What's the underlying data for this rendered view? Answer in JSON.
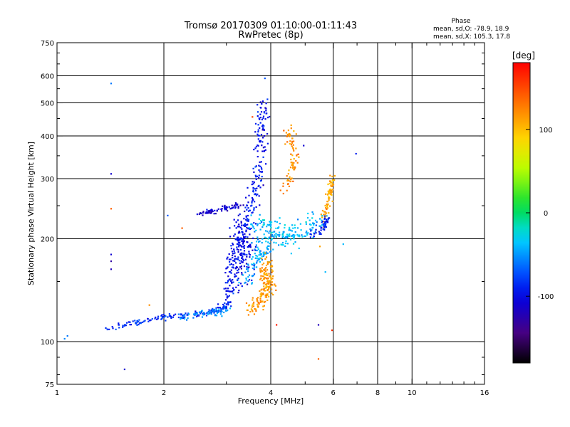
{
  "chart_data": {
    "type": "scatter",
    "title": "Tromsø 20170309 01:10:00-01:11:43",
    "subtitle": "RwPretec (8p)",
    "xlabel": "Frequency [MHz]",
    "ylabel": "Stationary phase Virtual Height [km]",
    "x_scale": "log",
    "y_scale": "log",
    "xlim": [
      1,
      16
    ],
    "ylim": [
      75,
      750
    ],
    "x_ticks": [
      1,
      2,
      4,
      6,
      8,
      10,
      16
    ],
    "y_ticks": [
      75,
      100,
      200,
      300,
      400,
      500,
      600,
      750
    ],
    "grid": true,
    "phase_stats": {
      "title": "Phase",
      "line_o": "mean, sd,O: -78.9, 18.9",
      "line_x": "mean, sd,X: 105.3, 17.8"
    },
    "colorbar": {
      "label": "[deg]",
      "range": [
        -180,
        180
      ],
      "ticks": [
        100,
        0,
        -100
      ],
      "tick_labels": [
        "100",
        "0",
        "-100"
      ]
    },
    "clusters": [
      {
        "name": "low-f blue trace",
        "phase": -85,
        "count": 160,
        "points": [
          [
            1.4,
            110
          ],
          [
            1.55,
            112
          ],
          [
            1.7,
            114
          ],
          [
            1.85,
            116
          ],
          [
            2.0,
            118
          ],
          [
            2.2,
            119
          ],
          [
            2.45,
            120
          ],
          [
            2.7,
            122
          ],
          [
            2.9,
            124
          ],
          [
            3.05,
            130
          ]
        ],
        "spread_f": 0.015,
        "spread_h": 0.012
      },
      {
        "name": "low-f cyan trace",
        "phase": -55,
        "count": 60,
        "points": [
          [
            2.2,
            118
          ],
          [
            2.5,
            120
          ],
          [
            2.8,
            122
          ],
          [
            3.0,
            125
          ]
        ],
        "spread_f": 0.02,
        "spread_h": 0.015
      },
      {
        "name": "O-mode column",
        "phase": -95,
        "count": 260,
        "points": [
          [
            3.0,
            130
          ],
          [
            3.1,
            150
          ],
          [
            3.15,
            170
          ],
          [
            3.25,
            190
          ],
          [
            3.35,
            210
          ],
          [
            3.45,
            235
          ],
          [
            3.55,
            260
          ],
          [
            3.65,
            290
          ],
          [
            3.72,
            330
          ],
          [
            3.76,
            380
          ],
          [
            3.78,
            440
          ],
          [
            3.8,
            500
          ]
        ],
        "spread_f": 0.025,
        "spread_h": 0.03
      },
      {
        "name": "O-mode base blob",
        "phase": -100,
        "count": 160,
        "points": [
          [
            3.1,
            140
          ],
          [
            3.2,
            160
          ],
          [
            3.3,
            180
          ],
          [
            3.4,
            200
          ],
          [
            3.25,
            220
          ],
          [
            3.5,
            170
          ]
        ],
        "spread_f": 0.05,
        "spread_h": 0.06
      },
      {
        "name": "upper cusp blue",
        "phase": -110,
        "count": 70,
        "points": [
          [
            2.5,
            236
          ],
          [
            2.7,
            240
          ],
          [
            2.9,
            244
          ],
          [
            3.1,
            248
          ],
          [
            3.3,
            250
          ]
        ],
        "spread_f": 0.02,
        "spread_h": 0.012
      },
      {
        "name": "cyan diffuse X layer",
        "phase": -40,
        "count": 180,
        "points": [
          [
            3.6,
            230
          ],
          [
            3.9,
            215
          ],
          [
            4.2,
            205
          ],
          [
            4.5,
            200
          ],
          [
            4.8,
            210
          ],
          [
            5.2,
            220
          ],
          [
            5.6,
            225
          ]
        ],
        "spread_f": 0.05,
        "spread_h": 0.05
      },
      {
        "name": "cyan mid column",
        "phase": -45,
        "count": 90,
        "points": [
          [
            3.4,
            150
          ],
          [
            3.6,
            170
          ],
          [
            3.8,
            185
          ],
          [
            3.9,
            195
          ]
        ],
        "spread_f": 0.035,
        "spread_h": 0.04
      },
      {
        "name": "orange X-mode cluster",
        "phase": 115,
        "count": 180,
        "points": [
          [
            3.5,
            125
          ],
          [
            3.7,
            130
          ],
          [
            3.9,
            140
          ],
          [
            4.0,
            150
          ],
          [
            3.8,
            160
          ],
          [
            3.9,
            170
          ],
          [
            4.0,
            145
          ]
        ],
        "spread_f": 0.025,
        "spread_h": 0.04
      },
      {
        "name": "orange upper trace",
        "phase": 120,
        "count": 80,
        "points": [
          [
            4.4,
            280
          ],
          [
            4.6,
            310
          ],
          [
            4.7,
            350
          ],
          [
            4.6,
            380
          ],
          [
            4.5,
            410
          ]
        ],
        "spread_f": 0.02,
        "spread_h": 0.035
      },
      {
        "name": "orange right branch",
        "phase": 110,
        "count": 70,
        "points": [
          [
            5.6,
            230
          ],
          [
            5.75,
            245
          ],
          [
            5.85,
            265
          ],
          [
            5.9,
            285
          ],
          [
            5.95,
            300
          ]
        ],
        "spread_f": 0.012,
        "spread_h": 0.03
      },
      {
        "name": "blue right cusp",
        "phase": -95,
        "count": 45,
        "points": [
          [
            5.2,
            205
          ],
          [
            5.4,
            210
          ],
          [
            5.55,
            215
          ],
          [
            5.7,
            220
          ],
          [
            5.8,
            230
          ]
        ],
        "spread_f": 0.012,
        "spread_h": 0.02
      }
    ],
    "isolated_points": [
      {
        "f": 1.42,
        "h": 570,
        "phase": -60
      },
      {
        "f": 1.42,
        "h": 310,
        "phase": -110
      },
      {
        "f": 1.42,
        "h": 245,
        "phase": 140
      },
      {
        "f": 1.42,
        "h": 180,
        "phase": -110
      },
      {
        "f": 1.42,
        "h": 172,
        "phase": -130
      },
      {
        "f": 1.42,
        "h": 163,
        "phase": -120
      },
      {
        "f": 1.55,
        "h": 83,
        "phase": -110
      },
      {
        "f": 1.07,
        "h": 104,
        "phase": -60
      },
      {
        "f": 1.05,
        "h": 102,
        "phase": -55
      },
      {
        "f": 1.82,
        "h": 128,
        "phase": 120
      },
      {
        "f": 2.05,
        "h": 234,
        "phase": -70
      },
      {
        "f": 2.25,
        "h": 215,
        "phase": 140
      },
      {
        "f": 3.85,
        "h": 590,
        "phase": -70
      },
      {
        "f": 3.55,
        "h": 455,
        "phase": 150
      },
      {
        "f": 4.35,
        "h": 415,
        "phase": 140
      },
      {
        "f": 4.95,
        "h": 375,
        "phase": -110
      },
      {
        "f": 6.95,
        "h": 355,
        "phase": -90
      },
      {
        "f": 6.4,
        "h": 193,
        "phase": -40
      },
      {
        "f": 5.45,
        "h": 112,
        "phase": -120
      },
      {
        "f": 5.95,
        "h": 108,
        "phase": 160
      },
      {
        "f": 5.45,
        "h": 89,
        "phase": 140
      },
      {
        "f": 5.7,
        "h": 160,
        "phase": -40
      },
      {
        "f": 5.5,
        "h": 190,
        "phase": 110
      },
      {
        "f": 4.15,
        "h": 112,
        "phase": 170
      }
    ]
  }
}
